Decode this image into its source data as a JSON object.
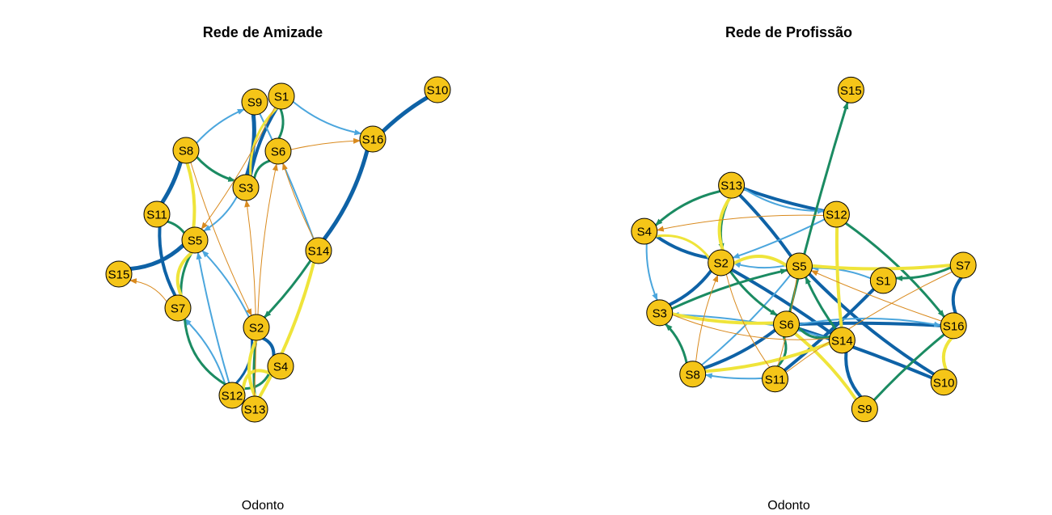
{
  "colors": {
    "node_fill": "#F5C518",
    "node_stroke": "#000000",
    "dark_blue": "#0E62A6",
    "light_blue": "#4BA6DD",
    "green": "#1B8B62",
    "yellow": "#EFE43A",
    "orange": "#D98A1E"
  },
  "panels": [
    {
      "id": "amizade",
      "title": "Rede de Amizade",
      "subtitle": "Odonto",
      "nodes": [
        "S1",
        "S2",
        "S3",
        "S4",
        "S5",
        "S6",
        "S7",
        "S8",
        "S9",
        "S10",
        "S11",
        "S12",
        "S13",
        "S14",
        "S15",
        "S16"
      ],
      "edges": [
        {
          "from": "S10",
          "to": "S16",
          "color": "dark_blue",
          "width": 5,
          "arrow": false
        },
        {
          "from": "S16",
          "to": "S14",
          "color": "dark_blue",
          "width": 5,
          "arrow": false
        },
        {
          "from": "S15",
          "to": "S5",
          "color": "dark_blue",
          "width": 5,
          "arrow": false
        },
        {
          "from": "S8",
          "to": "S11",
          "color": "dark_blue",
          "width": 5,
          "arrow": false
        },
        {
          "from": "S11",
          "to": "S7",
          "color": "dark_blue",
          "width": 4,
          "arrow": false
        },
        {
          "from": "S9",
          "to": "S3",
          "color": "dark_blue",
          "width": 5,
          "arrow": false
        },
        {
          "from": "S1",
          "to": "S3",
          "color": "dark_blue",
          "width": 4,
          "arrow": false
        },
        {
          "from": "S2",
          "to": "S4",
          "color": "dark_blue",
          "width": 4,
          "arrow": false
        },
        {
          "from": "S12",
          "to": "S2",
          "color": "dark_blue",
          "width": 3,
          "arrow": false
        },
        {
          "from": "S8",
          "to": "S9",
          "color": "light_blue",
          "width": 2,
          "arrow": true
        },
        {
          "from": "S1",
          "to": "S16",
          "color": "light_blue",
          "width": 2,
          "arrow": true
        },
        {
          "from": "S3",
          "to": "S5",
          "color": "light_blue",
          "width": 2,
          "arrow": true
        },
        {
          "from": "S12",
          "to": "S7",
          "color": "light_blue",
          "width": 2,
          "arrow": true
        },
        {
          "from": "S12",
          "to": "S5",
          "color": "light_blue",
          "width": 2,
          "arrow": true
        },
        {
          "from": "S2",
          "to": "S5",
          "color": "light_blue",
          "width": 2,
          "arrow": true
        },
        {
          "from": "S9",
          "to": "S14",
          "color": "light_blue",
          "width": 2,
          "arrow": false
        },
        {
          "from": "S8",
          "to": "S3",
          "color": "green",
          "width": 3,
          "arrow": true
        },
        {
          "from": "S1",
          "to": "S6",
          "color": "green",
          "width": 3,
          "arrow": false
        },
        {
          "from": "S6",
          "to": "S3",
          "color": "green",
          "width": 3,
          "arrow": false
        },
        {
          "from": "S11",
          "to": "S5",
          "color": "green",
          "width": 3,
          "arrow": false
        },
        {
          "from": "S5",
          "to": "S7",
          "color": "green",
          "width": 3,
          "arrow": false
        },
        {
          "from": "S14",
          "to": "S2",
          "color": "green",
          "width": 3,
          "arrow": true
        },
        {
          "from": "S12",
          "to": "S4",
          "color": "green",
          "width": 3,
          "arrow": false
        },
        {
          "from": "S13",
          "to": "S2",
          "color": "green",
          "width": 3,
          "arrow": false
        },
        {
          "from": "S7",
          "to": "S12",
          "color": "green",
          "width": 3,
          "arrow": false
        },
        {
          "from": "S8",
          "to": "S5",
          "color": "yellow",
          "width": 4,
          "arrow": false
        },
        {
          "from": "S5",
          "to": "S7",
          "color": "yellow",
          "width": 4,
          "arrow": false
        },
        {
          "from": "S14",
          "to": "S13",
          "color": "yellow",
          "width": 4,
          "arrow": false
        },
        {
          "from": "S4",
          "to": "S12",
          "color": "yellow",
          "width": 4,
          "arrow": false
        },
        {
          "from": "S13",
          "to": "S2",
          "color": "yellow",
          "width": 4,
          "arrow": false
        },
        {
          "from": "S1",
          "to": "S3",
          "color": "yellow",
          "width": 3,
          "arrow": false
        },
        {
          "from": "S6",
          "to": "S16",
          "color": "orange",
          "width": 1,
          "arrow": true
        },
        {
          "from": "S7",
          "to": "S15",
          "color": "orange",
          "width": 1,
          "arrow": true
        },
        {
          "from": "S2",
          "to": "S6",
          "color": "orange",
          "width": 1,
          "arrow": true
        },
        {
          "from": "S8",
          "to": "S2",
          "color": "orange",
          "width": 1,
          "arrow": true
        },
        {
          "from": "S1",
          "to": "S5",
          "color": "orange",
          "width": 1,
          "arrow": true
        },
        {
          "from": "S13",
          "to": "S3",
          "color": "orange",
          "width": 1,
          "arrow": true
        },
        {
          "from": "S14",
          "to": "S6",
          "color": "orange",
          "width": 1,
          "arrow": true
        }
      ]
    },
    {
      "id": "profissao",
      "title": "Rede de Profissão",
      "subtitle": "Odonto",
      "nodes": [
        "S1",
        "S2",
        "S3",
        "S4",
        "S5",
        "S6",
        "S7",
        "S8",
        "S9",
        "S10",
        "S11",
        "S12",
        "S13",
        "S14",
        "S15",
        "S16"
      ],
      "edges": [
        {
          "from": "S13",
          "to": "S12",
          "color": "dark_blue",
          "width": 4,
          "arrow": false
        },
        {
          "from": "S13",
          "to": "S5",
          "color": "dark_blue",
          "width": 4,
          "arrow": false
        },
        {
          "from": "S4",
          "to": "S2",
          "color": "dark_blue",
          "width": 4,
          "arrow": false
        },
        {
          "from": "S2",
          "to": "S3",
          "color": "dark_blue",
          "width": 4,
          "arrow": false
        },
        {
          "from": "S8",
          "to": "S6",
          "color": "dark_blue",
          "width": 4,
          "arrow": false
        },
        {
          "from": "S2",
          "to": "S14",
          "color": "dark_blue",
          "width": 4,
          "arrow": false
        },
        {
          "from": "S5",
          "to": "S10",
          "color": "dark_blue",
          "width": 4,
          "arrow": false
        },
        {
          "from": "S6",
          "to": "S16",
          "color": "dark_blue",
          "width": 4,
          "arrow": false
        },
        {
          "from": "S7",
          "to": "S16",
          "color": "dark_blue",
          "width": 4,
          "arrow": false
        },
        {
          "from": "S1",
          "to": "S11",
          "color": "dark_blue",
          "width": 4,
          "arrow": false
        },
        {
          "from": "S14",
          "to": "S9",
          "color": "dark_blue",
          "width": 4,
          "arrow": false
        },
        {
          "from": "S6",
          "to": "S10",
          "color": "dark_blue",
          "width": 4,
          "arrow": false
        },
        {
          "from": "S13",
          "to": "S12",
          "color": "light_blue",
          "width": 2,
          "arrow": true
        },
        {
          "from": "S5",
          "to": "S2",
          "color": "light_blue",
          "width": 2,
          "arrow": true
        },
        {
          "from": "S4",
          "to": "S3",
          "color": "light_blue",
          "width": 2,
          "arrow": true
        },
        {
          "from": "S11",
          "to": "S8",
          "color": "light_blue",
          "width": 2,
          "arrow": true
        },
        {
          "from": "S1",
          "to": "S5",
          "color": "light_blue",
          "width": 2,
          "arrow": true
        },
        {
          "from": "S6",
          "to": "S16",
          "color": "light_blue",
          "width": 2,
          "arrow": true
        },
        {
          "from": "S8",
          "to": "S5",
          "color": "light_blue",
          "width": 2,
          "arrow": false
        },
        {
          "from": "S12",
          "to": "S2",
          "color": "light_blue",
          "width": 2,
          "arrow": true
        },
        {
          "from": "S14",
          "to": "S3",
          "color": "light_blue",
          "width": 2,
          "arrow": true
        },
        {
          "from": "S6",
          "to": "S15",
          "color": "green",
          "width": 3,
          "arrow": true
        },
        {
          "from": "S13",
          "to": "S4",
          "color": "green",
          "width": 3,
          "arrow": true
        },
        {
          "from": "S12",
          "to": "S16",
          "color": "green",
          "width": 3,
          "arrow": true
        },
        {
          "from": "S13",
          "to": "S2",
          "color": "green",
          "width": 3,
          "arrow": true
        },
        {
          "from": "S3",
          "to": "S5",
          "color": "green",
          "width": 3,
          "arrow": true
        },
        {
          "from": "S8",
          "to": "S3",
          "color": "green",
          "width": 3,
          "arrow": true
        },
        {
          "from": "S7",
          "to": "S1",
          "color": "green",
          "width": 3,
          "arrow": true
        },
        {
          "from": "S2",
          "to": "S6",
          "color": "green",
          "width": 3,
          "arrow": true
        },
        {
          "from": "S14",
          "to": "S5",
          "color": "green",
          "width": 3,
          "arrow": true
        },
        {
          "from": "S11",
          "to": "S6",
          "color": "green",
          "width": 3,
          "arrow": false
        },
        {
          "from": "S9",
          "to": "S16",
          "color": "green",
          "width": 3,
          "arrow": false
        },
        {
          "from": "S6",
          "to": "S14",
          "color": "green",
          "width": 3,
          "arrow": false
        },
        {
          "from": "S2",
          "to": "S5",
          "color": "yellow",
          "width": 4,
          "arrow": false
        },
        {
          "from": "S5",
          "to": "S7",
          "color": "yellow",
          "width": 4,
          "arrow": false
        },
        {
          "from": "S2",
          "to": "S13",
          "color": "yellow",
          "width": 4,
          "arrow": false
        },
        {
          "from": "S3",
          "to": "S6",
          "color": "yellow",
          "width": 4,
          "arrow": false
        },
        {
          "from": "S6",
          "to": "S9",
          "color": "yellow",
          "width": 4,
          "arrow": false
        },
        {
          "from": "S12",
          "to": "S14",
          "color": "yellow",
          "width": 4,
          "arrow": false
        },
        {
          "from": "S10",
          "to": "S16",
          "color": "yellow",
          "width": 4,
          "arrow": false
        },
        {
          "from": "S8",
          "to": "S14",
          "color": "yellow",
          "width": 4,
          "arrow": false
        },
        {
          "from": "S4",
          "to": "S2",
          "color": "yellow",
          "width": 3,
          "arrow": false
        },
        {
          "from": "S12",
          "to": "S4",
          "color": "orange",
          "width": 1,
          "arrow": true
        },
        {
          "from": "S8",
          "to": "S2",
          "color": "orange",
          "width": 1,
          "arrow": true
        },
        {
          "from": "S7",
          "to": "S11",
          "color": "orange",
          "width": 1,
          "arrow": false
        },
        {
          "from": "S5",
          "to": "S11",
          "color": "orange",
          "width": 1,
          "arrow": false
        },
        {
          "from": "S2",
          "to": "S11",
          "color": "orange",
          "width": 1,
          "arrow": false
        },
        {
          "from": "S16",
          "to": "S5",
          "color": "orange",
          "width": 1,
          "arrow": true
        },
        {
          "from": "S3",
          "to": "S14",
          "color": "orange",
          "width": 1,
          "arrow": false
        }
      ]
    }
  ]
}
